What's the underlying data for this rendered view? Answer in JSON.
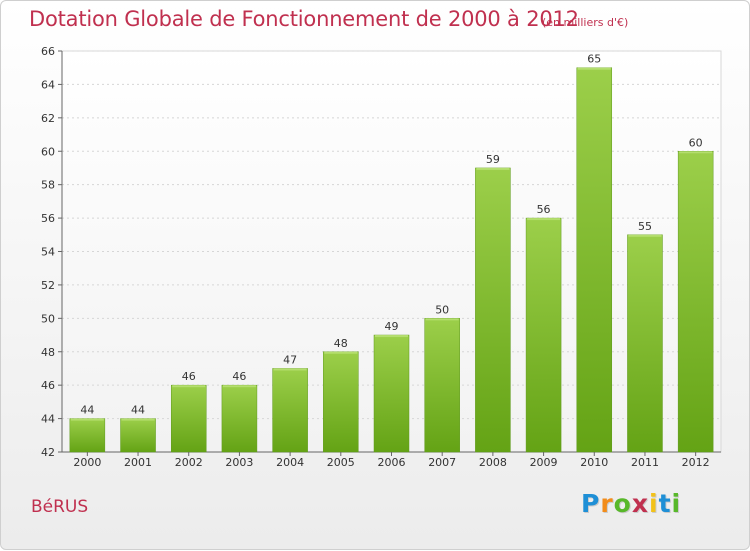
{
  "header": {
    "title": "Dotation Globale de Fonctionnement de 2000 à 2012",
    "subtitle": "(en milliers d'€)"
  },
  "footer": {
    "commune": "BéRUS",
    "logo": [
      "P",
      "r",
      "o",
      "x",
      "i",
      "t",
      "i"
    ],
    "logo_colors": [
      "#1e8fd6",
      "#f28c1a",
      "#58b82a",
      "#c0304f",
      "#f2c21a",
      "#1e8fd6",
      "#58b82a"
    ]
  },
  "chart_data": {
    "type": "bar",
    "title": "Dotation Globale de Fonctionnement de 2000 à 2012",
    "unit": "(en milliers d'€)",
    "categories": [
      "2000",
      "2001",
      "2002",
      "2003",
      "2004",
      "2005",
      "2006",
      "2007",
      "2008",
      "2009",
      "2010",
      "2011",
      "2012"
    ],
    "values": [
      44,
      44,
      46,
      46,
      47,
      48,
      49,
      50,
      59,
      56,
      65,
      55,
      60
    ],
    "ylim": [
      42,
      66
    ],
    "yticks": [
      42,
      44,
      46,
      48,
      50,
      52,
      54,
      56,
      58,
      60,
      62,
      64,
      66
    ],
    "grid": true,
    "bar_color": "#7dbb2e",
    "data_labels": true
  }
}
